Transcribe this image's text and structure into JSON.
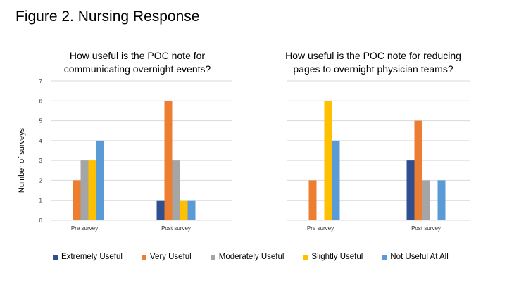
{
  "figure_title": "Figure 2. Nursing Response",
  "colors": {
    "Extremely Useful": "#2F4F8F",
    "Very Useful": "#ED7D31",
    "Moderately Useful": "#A5A5A5",
    "Slightly Useful": "#FFC000",
    "Not Useful At All": "#5B9BD5"
  },
  "chart_data": [
    {
      "type": "bar",
      "title": "How useful is the POC note for communicating overnight events?",
      "title_lines": [
        "How useful is the POC note for",
        "communicating overnight events?"
      ],
      "categories": [
        "Pre survey",
        "Post survey"
      ],
      "ylabel": "Number of surveys",
      "ylim": [
        0,
        7
      ],
      "yticks": [
        "0",
        "1",
        "2",
        "3",
        "4",
        "5",
        "6",
        "7"
      ],
      "series": [
        {
          "name": "Extremely Useful",
          "values": [
            0,
            1
          ]
        },
        {
          "name": "Very Useful",
          "values": [
            2,
            6
          ]
        },
        {
          "name": "Moderately Useful",
          "values": [
            3,
            3
          ]
        },
        {
          "name": "Slightly Useful",
          "values": [
            3,
            1
          ]
        },
        {
          "name": "Not Useful At All",
          "values": [
            4,
            1
          ]
        }
      ]
    },
    {
      "type": "bar",
      "title": "How useful is the POC note for reducing pages to overnight physician teams?",
      "title_lines": [
        "How useful is the POC note for reducing",
        "pages to overnight physician teams?"
      ],
      "categories": [
        "Pre survey",
        "Post survey"
      ],
      "ylim": [
        0,
        7
      ],
      "series": [
        {
          "name": "Extremely Useful",
          "values": [
            0,
            3
          ]
        },
        {
          "name": "Very Useful",
          "values": [
            2,
            5
          ]
        },
        {
          "name": "Moderately Useful",
          "values": [
            0,
            2
          ]
        },
        {
          "name": "Slightly Useful",
          "values": [
            6,
            0
          ]
        },
        {
          "name": "Not Useful At All",
          "values": [
            4,
            2
          ]
        }
      ]
    }
  ],
  "legend": [
    "Extremely Useful",
    "Very Useful",
    "Moderately Useful",
    "Slightly Useful",
    "Not Useful At All"
  ]
}
